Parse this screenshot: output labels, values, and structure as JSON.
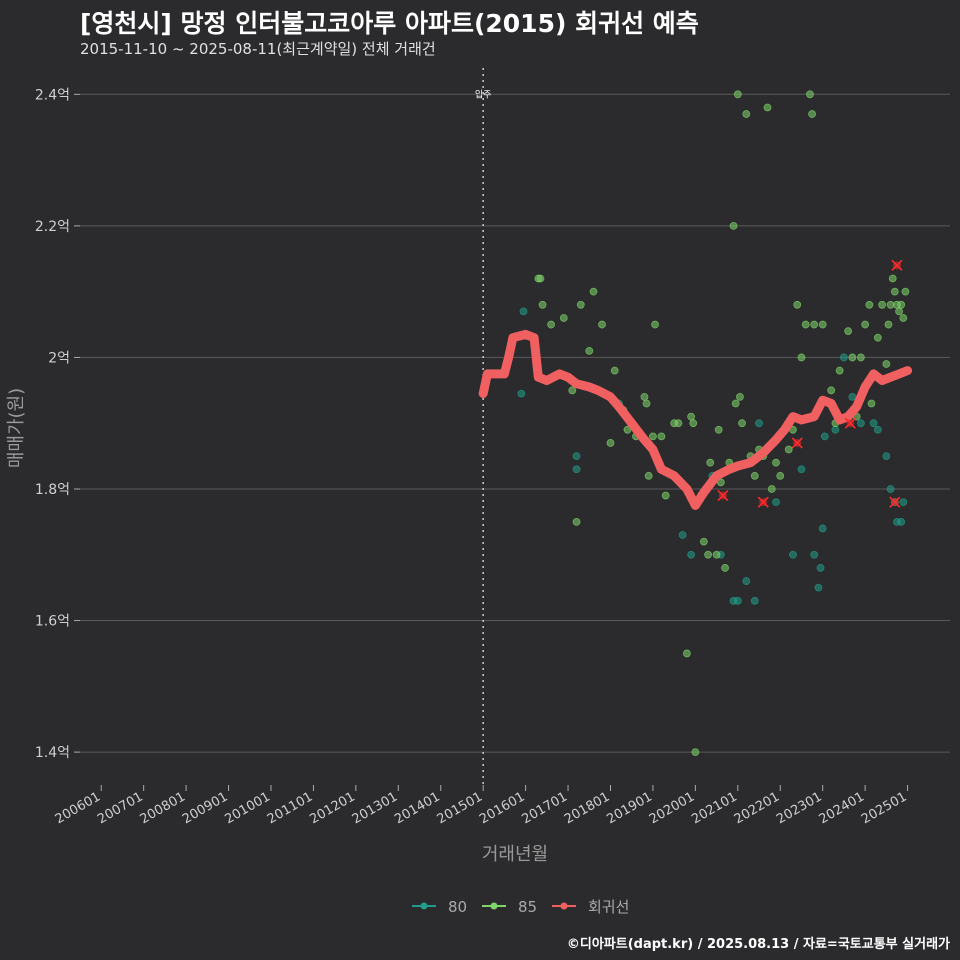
{
  "title": "[영천시] 망정 인터불고코아루 아파트(2015) 회귀선 예측",
  "subtitle": "2015-11-10 ~ 2025-08-11(최근계약일) 전체 거래건",
  "caption": "©디아파트(dapt.kr) / 2025.08.13 / 자료=국토교통부 실거래가",
  "colors": {
    "background": "#2b2b2d",
    "grid": "#5a5a5a",
    "s80": "#1f9e89",
    "s85": "#7ed66a",
    "regression": "#f06060",
    "outlier": "#ff2a2a"
  },
  "chart_data": {
    "type": "scatter",
    "xlabel": "거래년월",
    "ylabel": "매매가(원)",
    "xlim": [
      2005.5,
      2026.0
    ],
    "ylim": [
      1.35,
      2.44
    ],
    "x_ticks": [
      "200601",
      "200701",
      "200801",
      "200901",
      "201001",
      "201101",
      "201201",
      "201301",
      "201401",
      "201501",
      "201601",
      "201701",
      "201801",
      "201901",
      "202001",
      "202101",
      "202201",
      "202301",
      "202401",
      "202501"
    ],
    "y_ticks": [
      {
        "value": 1.4,
        "label": "1.4억"
      },
      {
        "value": 1.6,
        "label": "1.6억"
      },
      {
        "value": 1.8,
        "label": "1.8억"
      },
      {
        "value": 2.0,
        "label": "2억"
      },
      {
        "value": 2.2,
        "label": "2.2억"
      },
      {
        "value": 2.4,
        "label": "2.4억"
      }
    ],
    "annotation": {
      "x": 2015.0,
      "label": "입주"
    },
    "legend": [
      "80",
      "85",
      "회귀선"
    ],
    "series": [
      {
        "name": "80",
        "points": [
          [
            2015.9,
            1.945
          ],
          [
            2015.95,
            2.07
          ],
          [
            2017.2,
            1.85
          ],
          [
            2017.2,
            1.83
          ],
          [
            2018.2,
            1.93
          ],
          [
            2019.7,
            1.73
          ],
          [
            2019.9,
            1.7
          ],
          [
            2020.4,
            1.82
          ],
          [
            2020.6,
            1.7
          ],
          [
            2020.9,
            1.63
          ],
          [
            2021.0,
            1.63
          ],
          [
            2021.2,
            1.66
          ],
          [
            2021.4,
            1.63
          ],
          [
            2021.5,
            1.9
          ],
          [
            2021.9,
            1.78
          ],
          [
            2022.3,
            1.7
          ],
          [
            2022.5,
            1.83
          ],
          [
            2022.8,
            1.7
          ],
          [
            2022.9,
            1.65
          ],
          [
            2022.95,
            1.68
          ],
          [
            2023.0,
            1.74
          ],
          [
            2023.05,
            1.88
          ],
          [
            2023.3,
            1.89
          ],
          [
            2023.5,
            2.0
          ],
          [
            2023.7,
            1.94
          ],
          [
            2023.9,
            1.9
          ],
          [
            2024.2,
            1.9
          ],
          [
            2024.3,
            1.89
          ],
          [
            2024.5,
            1.85
          ],
          [
            2024.7,
            1.78
          ],
          [
            2024.75,
            1.75
          ],
          [
            2024.85,
            1.75
          ],
          [
            2024.9,
            1.78
          ],
          [
            2024.6,
            1.8
          ]
        ]
      },
      {
        "name": "85",
        "points": [
          [
            2016.3,
            2.12
          ],
          [
            2016.35,
            2.12
          ],
          [
            2016.4,
            2.08
          ],
          [
            2016.6,
            2.05
          ],
          [
            2016.9,
            2.06
          ],
          [
            2017.1,
            1.95
          ],
          [
            2017.2,
            1.75
          ],
          [
            2017.3,
            2.08
          ],
          [
            2017.5,
            2.01
          ],
          [
            2017.6,
            2.1
          ],
          [
            2017.7,
            1.95
          ],
          [
            2017.8,
            2.05
          ],
          [
            2018.0,
            1.87
          ],
          [
            2018.1,
            1.98
          ],
          [
            2018.3,
            1.92
          ],
          [
            2018.4,
            1.89
          ],
          [
            2018.6,
            1.88
          ],
          [
            2018.8,
            1.94
          ],
          [
            2018.85,
            1.93
          ],
          [
            2018.9,
            1.82
          ],
          [
            2019.0,
            1.88
          ],
          [
            2019.05,
            2.05
          ],
          [
            2019.2,
            1.88
          ],
          [
            2019.3,
            1.79
          ],
          [
            2019.5,
            1.9
          ],
          [
            2019.6,
            1.9
          ],
          [
            2019.8,
            1.55
          ],
          [
            2019.9,
            1.91
          ],
          [
            2019.95,
            1.9
          ],
          [
            2020.0,
            1.4
          ],
          [
            2020.2,
            1.72
          ],
          [
            2020.3,
            1.7
          ],
          [
            2020.35,
            1.84
          ],
          [
            2020.5,
            1.7
          ],
          [
            2020.55,
            1.89
          ],
          [
            2020.6,
            1.81
          ],
          [
            2020.7,
            1.68
          ],
          [
            2020.8,
            1.84
          ],
          [
            2020.9,
            2.2
          ],
          [
            2020.95,
            1.93
          ],
          [
            2021.0,
            2.4
          ],
          [
            2021.05,
            1.94
          ],
          [
            2021.1,
            1.9
          ],
          [
            2021.2,
            2.37
          ],
          [
            2021.3,
            1.85
          ],
          [
            2021.4,
            1.82
          ],
          [
            2021.5,
            1.86
          ],
          [
            2021.6,
            1.85
          ],
          [
            2021.7,
            2.38
          ],
          [
            2021.8,
            1.8
          ],
          [
            2021.9,
            1.84
          ],
          [
            2022.0,
            1.82
          ],
          [
            2022.2,
            1.86
          ],
          [
            2022.3,
            1.89
          ],
          [
            2022.4,
            2.08
          ],
          [
            2022.5,
            2.0
          ],
          [
            2022.6,
            2.05
          ],
          [
            2022.7,
            2.4
          ],
          [
            2022.75,
            2.37
          ],
          [
            2022.8,
            2.05
          ],
          [
            2023.0,
            2.05
          ],
          [
            2023.2,
            1.95
          ],
          [
            2023.3,
            1.9
          ],
          [
            2023.4,
            1.98
          ],
          [
            2023.6,
            2.04
          ],
          [
            2023.7,
            2.0
          ],
          [
            2023.8,
            1.91
          ],
          [
            2023.9,
            2.0
          ],
          [
            2024.0,
            2.05
          ],
          [
            2024.1,
            2.08
          ],
          [
            2024.15,
            1.93
          ],
          [
            2024.3,
            2.03
          ],
          [
            2024.4,
            2.08
          ],
          [
            2024.5,
            1.99
          ],
          [
            2024.55,
            2.05
          ],
          [
            2024.6,
            2.08
          ],
          [
            2024.65,
            2.12
          ],
          [
            2024.7,
            2.1
          ],
          [
            2024.75,
            2.08
          ],
          [
            2024.8,
            2.07
          ],
          [
            2024.85,
            2.08
          ],
          [
            2024.9,
            2.06
          ],
          [
            2024.95,
            2.1
          ]
        ]
      }
    ],
    "outliers": [
      [
        2020.65,
        1.79
      ],
      [
        2021.6,
        1.78
      ],
      [
        2022.4,
        1.87
      ],
      [
        2023.65,
        1.9
      ],
      [
        2024.7,
        1.78
      ],
      [
        2024.75,
        2.14
      ]
    ],
    "regression": [
      [
        2015.0,
        1.945
      ],
      [
        2015.1,
        1.975
      ],
      [
        2015.5,
        1.975
      ],
      [
        2015.6,
        2.0
      ],
      [
        2015.7,
        2.03
      ],
      [
        2016.0,
        2.035
      ],
      [
        2016.2,
        2.03
      ],
      [
        2016.3,
        1.97
      ],
      [
        2016.5,
        1.965
      ],
      [
        2016.8,
        1.975
      ],
      [
        2017.0,
        1.97
      ],
      [
        2017.2,
        1.96
      ],
      [
        2017.5,
        1.955
      ],
      [
        2017.7,
        1.95
      ],
      [
        2018.0,
        1.94
      ],
      [
        2018.2,
        1.925
      ],
      [
        2018.5,
        1.9
      ],
      [
        2018.8,
        1.875
      ],
      [
        2019.0,
        1.86
      ],
      [
        2019.2,
        1.83
      ],
      [
        2019.5,
        1.82
      ],
      [
        2019.8,
        1.8
      ],
      [
        2020.0,
        1.775
      ],
      [
        2020.2,
        1.795
      ],
      [
        2020.5,
        1.82
      ],
      [
        2020.8,
        1.83
      ],
      [
        2021.0,
        1.835
      ],
      [
        2021.3,
        1.84
      ],
      [
        2021.6,
        1.855
      ],
      [
        2021.9,
        1.875
      ],
      [
        2022.1,
        1.89
      ],
      [
        2022.3,
        1.91
      ],
      [
        2022.5,
        1.905
      ],
      [
        2022.8,
        1.91
      ],
      [
        2023.0,
        1.935
      ],
      [
        2023.2,
        1.93
      ],
      [
        2023.4,
        1.905
      ],
      [
        2023.6,
        1.91
      ],
      [
        2023.8,
        1.925
      ],
      [
        2024.0,
        1.955
      ],
      [
        2024.2,
        1.975
      ],
      [
        2024.4,
        1.965
      ],
      [
        2024.6,
        1.97
      ],
      [
        2024.8,
        1.975
      ],
      [
        2025.0,
        1.98
      ]
    ]
  }
}
